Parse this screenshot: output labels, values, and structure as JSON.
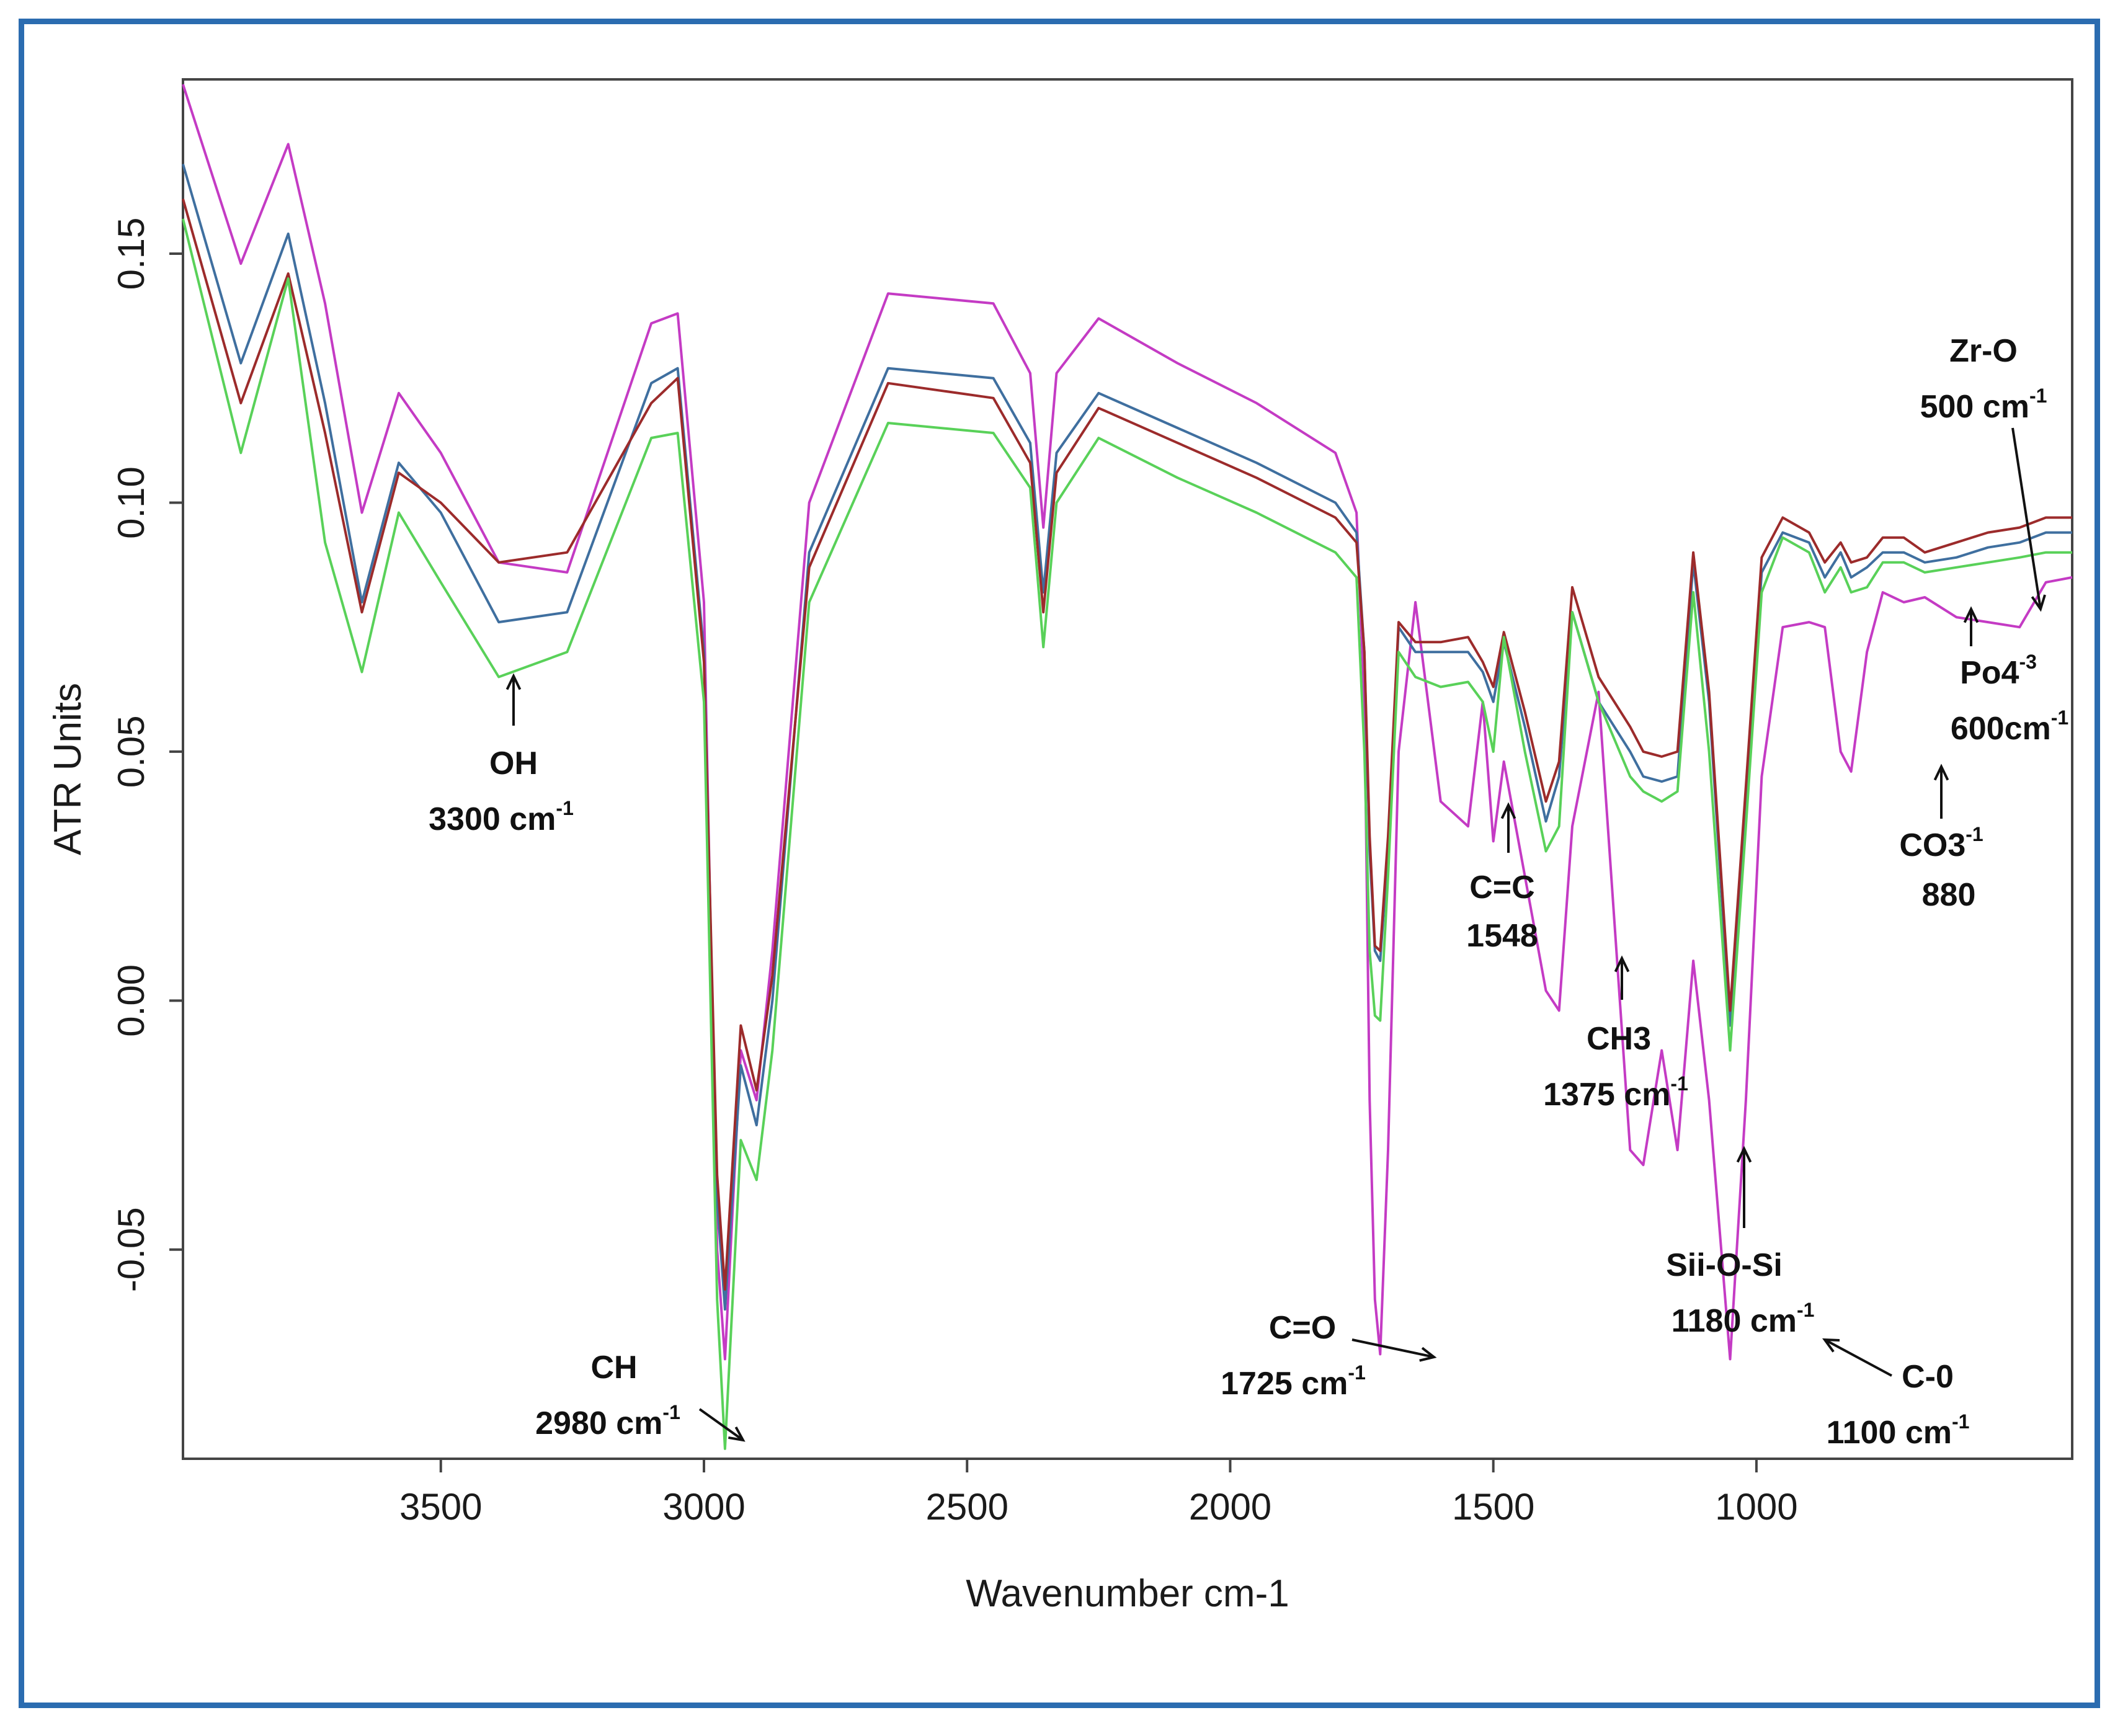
{
  "chart_data": {
    "type": "line",
    "title": "",
    "xlabel": "Wavenumber cm-1",
    "ylabel": "ATR Units",
    "xlim": [
      3990,
      400
    ],
    "ylim": [
      -0.092,
      0.185
    ],
    "x_reversed": true,
    "grid": false,
    "legend": "none",
    "xticks": [
      3500,
      3000,
      2500,
      2000,
      1500,
      1000
    ],
    "xtick_labels": [
      "3500",
      "3000",
      "2500",
      "2000",
      "1500",
      "1000"
    ],
    "yticks": [
      0.15,
      0.1,
      0.05,
      0.0,
      -0.05
    ],
    "ytick_labels": [
      "0.15",
      "0.10",
      "0.05",
      "0.00",
      "-0.05"
    ],
    "series": [
      {
        "color": "#c43bc4",
        "x": [
          3990,
          3880,
          3790,
          3720,
          3650,
          3580,
          3500,
          3390,
          3260,
          3100,
          3050,
          3000,
          2975,
          2960,
          2930,
          2900,
          2870,
          2800,
          2650,
          2450,
          2380,
          2355,
          2330,
          2250,
          2100,
          1950,
          1800,
          1760,
          1745,
          1735,
          1725,
          1715,
          1700,
          1680,
          1648,
          1600,
          1548,
          1520,
          1500,
          1480,
          1440,
          1400,
          1375,
          1350,
          1300,
          1240,
          1215,
          1180,
          1150,
          1120,
          1090,
          1050,
          1020,
          990,
          950,
          900,
          870,
          840,
          820,
          790,
          760,
          720,
          680,
          620,
          560,
          500,
          450,
          400
        ],
        "y": [
          0.184,
          0.148,
          0.172,
          0.14,
          0.098,
          0.122,
          0.11,
          0.088,
          0.086,
          0.136,
          0.138,
          0.08,
          -0.05,
          -0.072,
          -0.01,
          -0.02,
          0.01,
          0.1,
          0.142,
          0.14,
          0.126,
          0.095,
          0.126,
          0.137,
          0.128,
          0.12,
          0.11,
          0.098,
          0.06,
          -0.02,
          -0.06,
          -0.071,
          -0.03,
          0.05,
          0.08,
          0.04,
          0.035,
          0.06,
          0.032,
          0.048,
          0.025,
          0.002,
          -0.002,
          0.035,
          0.062,
          -0.03,
          -0.033,
          -0.01,
          -0.03,
          0.008,
          -0.02,
          -0.072,
          -0.02,
          0.045,
          0.075,
          0.076,
          0.075,
          0.05,
          0.046,
          0.07,
          0.082,
          0.08,
          0.081,
          0.077,
          0.076,
          0.075,
          0.084,
          0.085
        ]
      },
      {
        "color": "#3f6f9f",
        "x": [
          3990,
          3880,
          3790,
          3720,
          3650,
          3580,
          3500,
          3390,
          3260,
          3100,
          3050,
          3000,
          2975,
          2960,
          2930,
          2900,
          2870,
          2800,
          2650,
          2450,
          2380,
          2355,
          2330,
          2250,
          2100,
          1950,
          1800,
          1760,
          1745,
          1735,
          1725,
          1715,
          1700,
          1680,
          1648,
          1600,
          1548,
          1520,
          1500,
          1480,
          1440,
          1400,
          1375,
          1350,
          1300,
          1240,
          1215,
          1180,
          1150,
          1120,
          1090,
          1050,
          1020,
          990,
          950,
          900,
          870,
          840,
          820,
          790,
          760,
          720,
          680,
          620,
          560,
          500,
          450,
          400
        ],
        "y": [
          0.168,
          0.128,
          0.154,
          0.12,
          0.08,
          0.108,
          0.098,
          0.076,
          0.078,
          0.124,
          0.127,
          0.07,
          -0.04,
          -0.062,
          -0.013,
          -0.025,
          0.0,
          0.09,
          0.127,
          0.125,
          0.112,
          0.082,
          0.11,
          0.122,
          0.115,
          0.108,
          0.1,
          0.094,
          0.07,
          0.03,
          0.01,
          0.008,
          0.03,
          0.075,
          0.07,
          0.07,
          0.07,
          0.066,
          0.06,
          0.072,
          0.055,
          0.036,
          0.045,
          0.078,
          0.06,
          0.05,
          0.045,
          0.044,
          0.045,
          0.088,
          0.06,
          -0.005,
          0.04,
          0.086,
          0.094,
          0.092,
          0.085,
          0.09,
          0.085,
          0.087,
          0.09,
          0.09,
          0.088,
          0.089,
          0.091,
          0.092,
          0.094,
          0.094
        ]
      },
      {
        "color": "#9c2b2b",
        "x": [
          3990,
          3880,
          3790,
          3720,
          3650,
          3580,
          3500,
          3390,
          3260,
          3100,
          3050,
          3000,
          2975,
          2960,
          2930,
          2900,
          2870,
          2800,
          2650,
          2450,
          2380,
          2355,
          2330,
          2250,
          2100,
          1950,
          1800,
          1760,
          1745,
          1735,
          1725,
          1715,
          1700,
          1680,
          1648,
          1600,
          1548,
          1520,
          1500,
          1480,
          1440,
          1400,
          1375,
          1350,
          1300,
          1240,
          1215,
          1180,
          1150,
          1120,
          1090,
          1050,
          1020,
          990,
          950,
          900,
          870,
          840,
          820,
          790,
          760,
          720,
          680,
          620,
          560,
          500,
          450,
          400
        ],
        "y": [
          0.161,
          0.12,
          0.146,
          0.114,
          0.078,
          0.106,
          0.1,
          0.088,
          0.09,
          0.12,
          0.125,
          0.068,
          -0.035,
          -0.058,
          -0.005,
          -0.018,
          0.005,
          0.087,
          0.124,
          0.121,
          0.108,
          0.078,
          0.106,
          0.119,
          0.112,
          0.105,
          0.097,
          0.092,
          0.07,
          0.033,
          0.011,
          0.01,
          0.033,
          0.076,
          0.072,
          0.072,
          0.073,
          0.068,
          0.063,
          0.074,
          0.058,
          0.04,
          0.048,
          0.083,
          0.065,
          0.055,
          0.05,
          0.049,
          0.05,
          0.09,
          0.062,
          -0.002,
          0.043,
          0.089,
          0.097,
          0.094,
          0.088,
          0.092,
          0.088,
          0.089,
          0.093,
          0.093,
          0.09,
          0.092,
          0.094,
          0.095,
          0.097,
          0.097
        ]
      },
      {
        "color": "#59d159",
        "x": [
          3990,
          3880,
          3790,
          3720,
          3650,
          3580,
          3500,
          3390,
          3260,
          3100,
          3050,
          3000,
          2975,
          2960,
          2930,
          2900,
          2870,
          2800,
          2650,
          2450,
          2380,
          2355,
          2330,
          2250,
          2100,
          1950,
          1800,
          1760,
          1745,
          1735,
          1725,
          1715,
          1700,
          1680,
          1648,
          1600,
          1548,
          1520,
          1500,
          1480,
          1440,
          1400,
          1375,
          1350,
          1300,
          1240,
          1215,
          1180,
          1150,
          1120,
          1090,
          1050,
          1020,
          990,
          950,
          900,
          870,
          840,
          820,
          790,
          760,
          720,
          680,
          620,
          560,
          500,
          450,
          400
        ],
        "y": [
          0.157,
          0.11,
          0.145,
          0.092,
          0.066,
          0.098,
          0.084,
          0.065,
          0.07,
          0.113,
          0.114,
          0.06,
          -0.06,
          -0.09,
          -0.028,
          -0.036,
          -0.01,
          0.08,
          0.116,
          0.114,
          0.103,
          0.071,
          0.1,
          0.113,
          0.105,
          0.098,
          0.09,
          0.085,
          0.05,
          0.01,
          -0.003,
          -0.004,
          0.025,
          0.07,
          0.065,
          0.063,
          0.064,
          0.06,
          0.05,
          0.073,
          0.05,
          0.03,
          0.035,
          0.078,
          0.06,
          0.045,
          0.042,
          0.04,
          0.042,
          0.082,
          0.05,
          -0.01,
          0.035,
          0.082,
          0.093,
          0.09,
          0.082,
          0.087,
          0.082,
          0.083,
          0.088,
          0.088,
          0.086,
          0.087,
          0.088,
          0.089,
          0.09,
          0.09
        ]
      }
    ],
    "annotations": [
      {
        "label": "OH",
        "unit": "3300 cm",
        "sup": "-1"
      },
      {
        "label": "CH",
        "unit": "2980 cm",
        "sup": "-1"
      },
      {
        "label": "C=O",
        "unit": "1725 cm",
        "sup": "-1"
      },
      {
        "label": "C=C",
        "unit": "1548",
        "sup": ""
      },
      {
        "label": "CH3",
        "unit": "1375 cm",
        "sup": "-1"
      },
      {
        "label": "Sii-O-Si",
        "unit": "1180 cm",
        "sup": "-1"
      },
      {
        "label": "C-0",
        "unit": "1100 cm",
        "sup": "-1"
      },
      {
        "label": "CO3",
        "label_sup": "-1",
        "unit": "880",
        "sup": ""
      },
      {
        "label": "Po4",
        "label_sup": "-3",
        "unit": "600cm",
        "sup": "-1"
      },
      {
        "label": "Zr-O",
        "unit": "500 cm",
        "sup": "-1"
      }
    ]
  }
}
